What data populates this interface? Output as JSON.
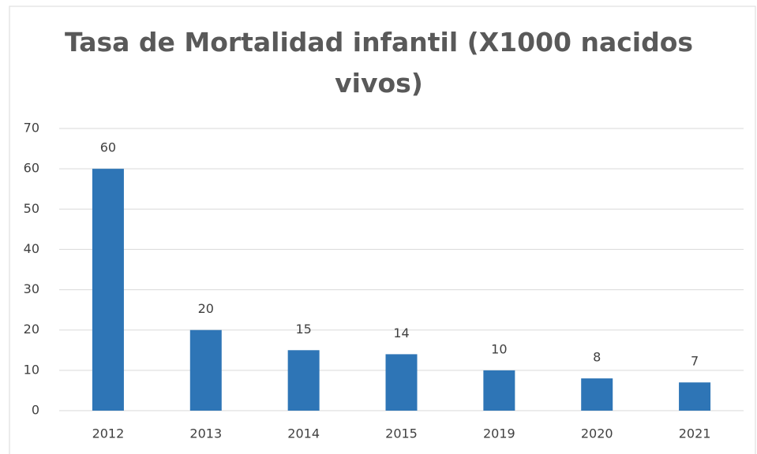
{
  "chart_data": {
    "type": "bar",
    "title": "Tasa de Mortalidad infantil (X1000 nacidos vivos)",
    "categories": [
      "2012",
      "2013",
      "2014",
      "2015",
      "2019",
      "2020",
      "2021"
    ],
    "values": [
      60,
      20,
      15,
      14,
      10,
      8,
      7
    ],
    "color": "#2e75b6",
    "ylim": [
      0,
      70
    ],
    "yticks": [
      0,
      10,
      20,
      30,
      40,
      50,
      60,
      70
    ],
    "grid": true,
    "data_labels": true
  }
}
